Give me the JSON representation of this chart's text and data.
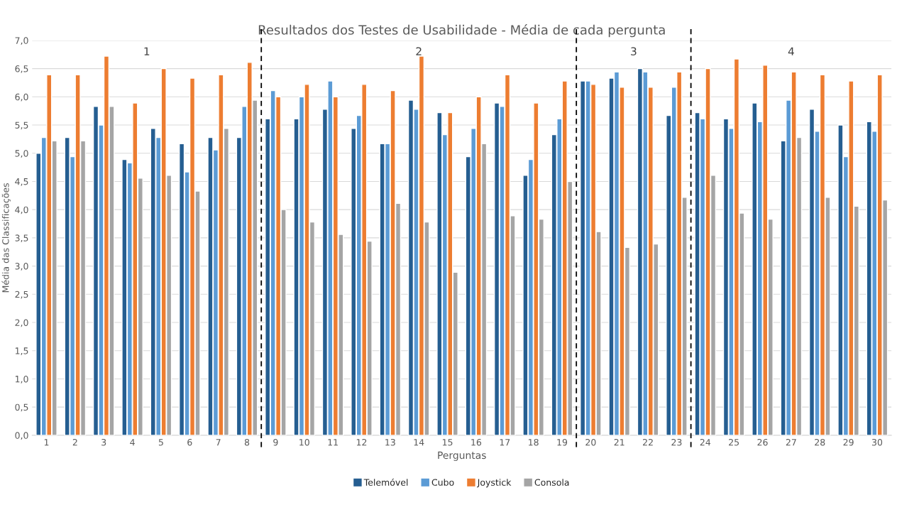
{
  "chart_data": {
    "type": "bar",
    "title": "Resultados dos Testes de Usabilidade - Média de cada pergunta",
    "xlabel": "Perguntas",
    "ylabel": "Média das Classificações",
    "x": [
      1,
      2,
      3,
      4,
      5,
      6,
      7,
      8,
      9,
      10,
      11,
      12,
      13,
      14,
      15,
      16,
      17,
      18,
      19,
      20,
      21,
      22,
      23,
      24,
      25,
      26,
      27,
      28,
      29,
      30
    ],
    "xlim": [
      0.5,
      30.5
    ],
    "xticks": [
      1,
      2,
      3,
      4,
      5,
      6,
      7,
      8,
      9,
      10,
      11,
      12,
      13,
      14,
      15,
      16,
      17,
      18,
      19,
      20,
      21,
      22,
      23,
      24,
      25,
      26,
      27,
      28,
      29,
      30
    ],
    "ylim": [
      0,
      7
    ],
    "yticks": [
      {
        "value": 0,
        "label": "0,0"
      },
      {
        "value": 0.5,
        "label": "0,5"
      },
      {
        "value": 1,
        "label": "1,0"
      },
      {
        "value": 1.5,
        "label": "1,5"
      },
      {
        "value": 2,
        "label": "2,0"
      },
      {
        "value": 2.5,
        "label": "2,5"
      },
      {
        "value": 3,
        "label": "3,0"
      },
      {
        "value": 3.5,
        "label": "3,5"
      },
      {
        "value": 4,
        "label": "4,0"
      },
      {
        "value": 4.5,
        "label": "4,5"
      },
      {
        "value": 5,
        "label": "5,0"
      },
      {
        "value": 5.5,
        "label": "5,5"
      },
      {
        "value": 6,
        "label": "6,0"
      },
      {
        "value": 6.5,
        "label": "6,5"
      },
      {
        "value": 7,
        "label": "7,0"
      }
    ],
    "grid": "y",
    "legend": "bottom",
    "series": [
      {
        "name": "Telemóvel",
        "color": "#255e91",
        "values": [
          5.0,
          5.28,
          5.83,
          4.89,
          5.44,
          5.17,
          5.28,
          5.28,
          5.61,
          5.61,
          5.78,
          5.44,
          5.17,
          5.94,
          5.72,
          4.94,
          5.89,
          4.61,
          5.33,
          6.28,
          6.33,
          6.5,
          5.67,
          5.72,
          5.61,
          5.89,
          5.22,
          5.78,
          5.5,
          5.56
        ]
      },
      {
        "name": "Cubo",
        "color": "#5b9bd5",
        "values": [
          5.28,
          4.94,
          5.5,
          4.83,
          5.28,
          4.67,
          5.06,
          5.83,
          6.11,
          6.0,
          6.28,
          5.67,
          5.17,
          5.78,
          5.33,
          5.44,
          5.83,
          4.89,
          5.61,
          6.28,
          6.44,
          6.44,
          6.17,
          5.61,
          5.44,
          5.56,
          5.94,
          5.39,
          4.94,
          5.39
        ]
      },
      {
        "name": "Joystick",
        "color": "#ed7d31",
        "values": [
          6.39,
          6.39,
          6.72,
          5.89,
          6.5,
          6.33,
          6.39,
          6.61,
          6.0,
          6.22,
          6.0,
          6.22,
          6.11,
          6.72,
          5.72,
          6.0,
          6.39,
          5.89,
          6.28,
          6.22,
          6.17,
          6.17,
          6.44,
          6.5,
          6.67,
          6.56,
          6.44,
          6.39,
          6.28,
          6.39
        ]
      },
      {
        "name": "Consola",
        "color": "#a5a5a5",
        "values": [
          5.22,
          5.22,
          5.83,
          4.56,
          4.61,
          4.33,
          5.44,
          5.94,
          4.0,
          3.78,
          3.56,
          3.44,
          4.11,
          3.78,
          2.89,
          5.17,
          3.89,
          3.83,
          4.5,
          3.61,
          3.33,
          3.39,
          4.22,
          4.61,
          3.94,
          3.83,
          5.28,
          4.22,
          4.06,
          4.17
        ]
      }
    ],
    "ref_lines": [
      {
        "axis": "x",
        "value": 8.5,
        "color": "#000000",
        "line_style": "dashed"
      },
      {
        "axis": "x",
        "value": 19.5,
        "color": "#000000",
        "line_style": "dashed"
      },
      {
        "axis": "x",
        "value": 23.5,
        "color": "#000000",
        "line_style": "dashed"
      }
    ],
    "annotations": [
      "1",
      "2",
      "3",
      "4"
    ]
  }
}
